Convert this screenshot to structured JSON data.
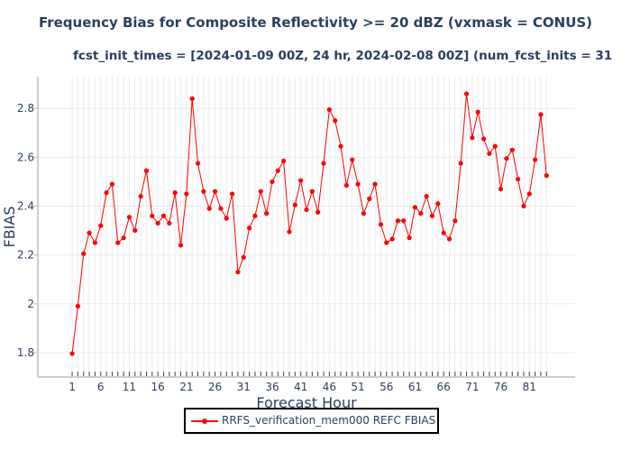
{
  "chart_data": {
    "type": "line",
    "title": "Frequency Bias for Composite Reflectivity >= 20 dBZ (vxmask = CONUS)",
    "subtitle": "fcst_init_times = [2024-01-09 00Z, 24 hr, 2024-02-08 00Z] (num_fcst_inits = 31",
    "xlabel": "Forecast Hour",
    "ylabel": "FBIAS",
    "xlim": [
      -5,
      89
    ],
    "ylim": [
      1.7,
      2.93
    ],
    "xticks": [
      1,
      6,
      11,
      16,
      21,
      26,
      31,
      36,
      41,
      46,
      51,
      56,
      61,
      66,
      71,
      76,
      81
    ],
    "xtick_labels": [
      "1",
      "6",
      "11",
      "16",
      "21",
      "26",
      "31",
      "36",
      "41",
      "46",
      "51",
      "56",
      "61",
      "66",
      "71",
      "76",
      "81"
    ],
    "yticks": [
      1.8,
      2.0,
      2.2,
      2.4,
      2.6,
      2.8
    ],
    "ytick_labels": [
      "1.8",
      "2",
      "2.2",
      "2.4",
      "2.6",
      "2.8"
    ],
    "grid": true,
    "legend_position": "bottom-center",
    "x": [
      1,
      2,
      3,
      4,
      5,
      6,
      7,
      8,
      9,
      10,
      11,
      12,
      13,
      14,
      15,
      16,
      17,
      18,
      19,
      20,
      21,
      22,
      23,
      24,
      25,
      26,
      27,
      28,
      29,
      30,
      31,
      32,
      33,
      34,
      35,
      36,
      37,
      38,
      39,
      40,
      41,
      42,
      43,
      44,
      45,
      46,
      47,
      48,
      49,
      50,
      51,
      52,
      53,
      54,
      55,
      56,
      57,
      58,
      59,
      60,
      61,
      62,
      63,
      64,
      65,
      66,
      67,
      68,
      69,
      70,
      71,
      72,
      73,
      74,
      75,
      76,
      77,
      78,
      79,
      80,
      81,
      82,
      83,
      84
    ],
    "series": [
      {
        "name": "RRFS_verification_mem000 REFC FBIAS",
        "color": "#ff0000",
        "values": [
          1.796,
          1.99,
          2.205,
          2.29,
          2.25,
          2.32,
          2.455,
          2.49,
          2.25,
          2.27,
          2.355,
          2.3,
          2.44,
          2.545,
          2.36,
          2.33,
          2.36,
          2.33,
          2.455,
          2.24,
          2.45,
          2.84,
          2.575,
          2.46,
          2.39,
          2.46,
          2.39,
          2.35,
          2.45,
          2.13,
          2.19,
          2.31,
          2.36,
          2.46,
          2.37,
          2.5,
          2.545,
          2.585,
          2.295,
          2.405,
          2.505,
          2.385,
          2.46,
          2.375,
          2.575,
          2.795,
          2.75,
          2.645,
          2.485,
          2.59,
          2.49,
          2.37,
          2.43,
          2.49,
          2.325,
          2.25,
          2.265,
          2.34,
          2.34,
          2.27,
          2.395,
          2.37,
          2.44,
          2.36,
          2.41,
          2.29,
          2.265,
          2.34,
          2.575,
          2.86,
          2.68,
          2.785,
          2.675,
          2.615,
          2.645,
          2.47,
          2.595,
          2.63,
          2.51,
          2.4,
          2.45,
          2.59,
          2.775,
          2.525
        ]
      }
    ]
  }
}
